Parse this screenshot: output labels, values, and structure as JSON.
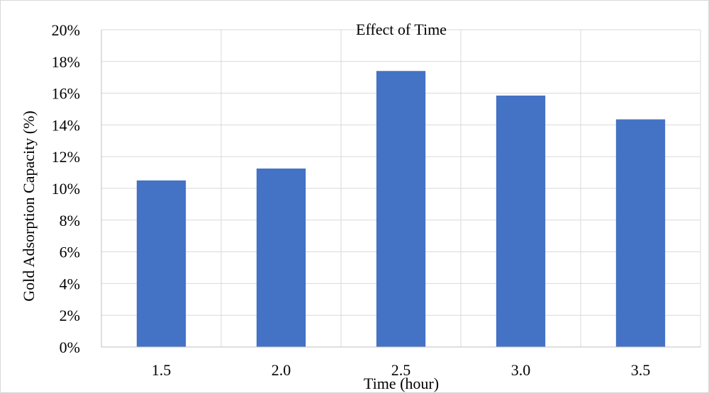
{
  "chart_data": {
    "type": "bar",
    "title": "Effect of Time",
    "xlabel": "Time (hour)",
    "ylabel": "Gold Adsorption Capacity (%)",
    "categories": [
      "1.5",
      "2.0",
      "2.5",
      "3.0",
      "3.5"
    ],
    "values": [
      10.5,
      11.25,
      17.4,
      15.85,
      14.35
    ],
    "ylim": [
      0,
      20
    ],
    "yticks": [
      "0%",
      "2%",
      "4%",
      "6%",
      "8%",
      "10%",
      "12%",
      "14%",
      "16%",
      "18%",
      "20%"
    ],
    "grid": true,
    "legend": "none",
    "colors": {
      "bar": "#4472c4",
      "grid": "#d9d9d9",
      "axis": "#bfbfbf"
    }
  }
}
